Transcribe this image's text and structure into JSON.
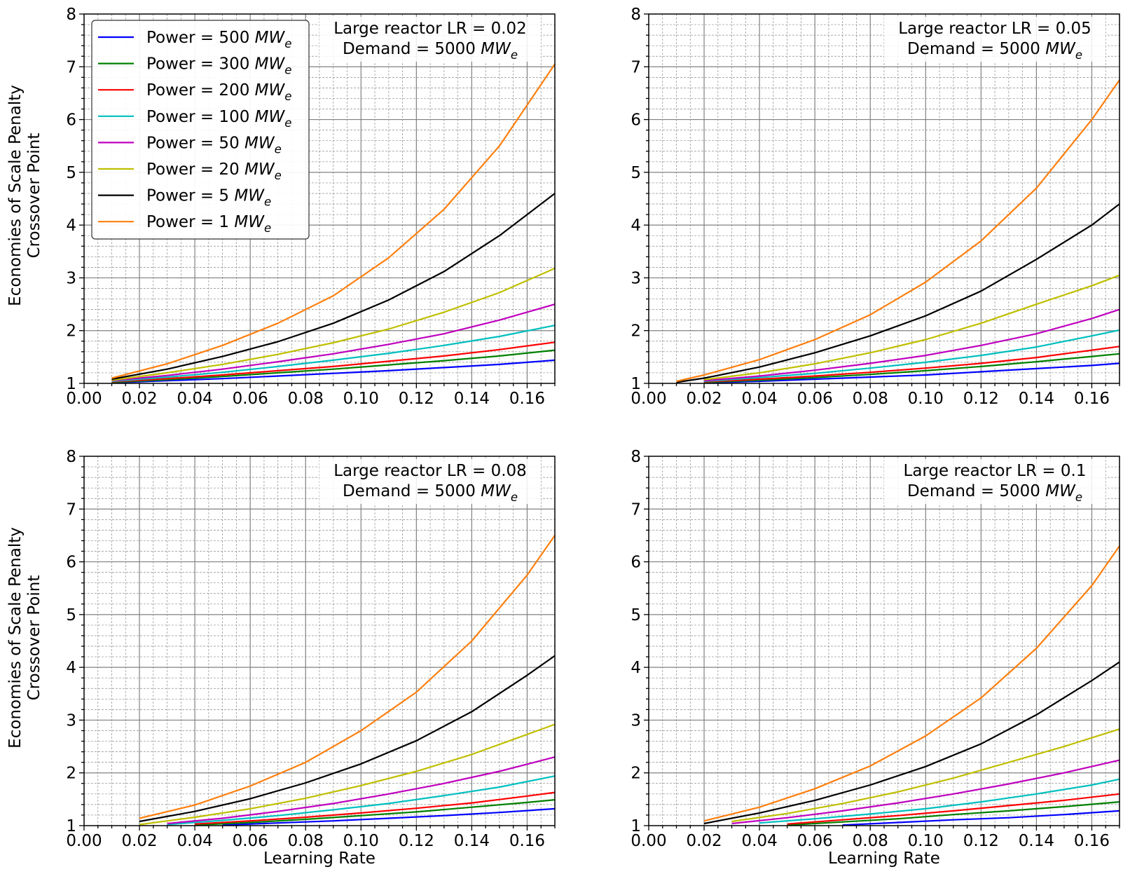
{
  "figure": {
    "ylabel_lines": [
      "Economies of Scale Penalty",
      "Crossover Point"
    ],
    "xlabel": "Learning Rate",
    "legend_prefix": "Power = ",
    "unit_main": "MW",
    "unit_sub": "e"
  },
  "chart_data": [
    {
      "type": "line",
      "panel": "top-left",
      "annotation_line1": "Large reactor LR = 0.02",
      "annotation_line2_prefix": "Demand = 5000 ",
      "xlim": [
        0,
        0.17
      ],
      "ylim": [
        1,
        8
      ],
      "xticks": [
        "0.00",
        "0.02",
        "0.04",
        "0.06",
        "0.08",
        "0.10",
        "0.12",
        "0.14",
        "0.16"
      ],
      "yticks": [
        "1",
        "2",
        "3",
        "4",
        "5",
        "6",
        "7",
        "8"
      ],
      "xlabel": "",
      "ylabel": "Economies of Scale Penalty Crossover Point",
      "grid": true,
      "legend": true,
      "legend_position": "upper-left",
      "series": [
        {
          "name": "500",
          "color": "#0000ff",
          "x": [
            0.01,
            0.03,
            0.05,
            0.07,
            0.09,
            0.11,
            0.13,
            0.15,
            0.17
          ],
          "y": [
            1.01,
            1.05,
            1.09,
            1.14,
            1.19,
            1.24,
            1.3,
            1.36,
            1.44
          ]
        },
        {
          "name": "300",
          "color": "#008000",
          "x": [
            0.01,
            0.03,
            0.05,
            0.07,
            0.09,
            0.11,
            0.13,
            0.15,
            0.17
          ],
          "y": [
            1.02,
            1.07,
            1.13,
            1.2,
            1.27,
            1.35,
            1.43,
            1.52,
            1.63
          ]
        },
        {
          "name": "200",
          "color": "#ff0000",
          "x": [
            0.01,
            0.03,
            0.05,
            0.07,
            0.09,
            0.11,
            0.13,
            0.15,
            0.17
          ],
          "y": [
            1.03,
            1.09,
            1.16,
            1.24,
            1.32,
            1.42,
            1.52,
            1.64,
            1.78
          ]
        },
        {
          "name": "100",
          "color": "#00bfbf",
          "x": [
            0.01,
            0.03,
            0.05,
            0.07,
            0.09,
            0.11,
            0.13,
            0.15,
            0.17
          ],
          "y": [
            1.04,
            1.12,
            1.21,
            1.32,
            1.44,
            1.57,
            1.72,
            1.89,
            2.1
          ]
        },
        {
          "name": "50",
          "color": "#bf00bf",
          "x": [
            0.01,
            0.03,
            0.05,
            0.07,
            0.09,
            0.11,
            0.13,
            0.15,
            0.17
          ],
          "y": [
            1.05,
            1.15,
            1.27,
            1.41,
            1.56,
            1.74,
            1.94,
            2.2,
            2.5
          ]
        },
        {
          "name": "20",
          "color": "#bfbf00",
          "x": [
            0.01,
            0.03,
            0.05,
            0.07,
            0.09,
            0.11,
            0.13,
            0.15,
            0.17
          ],
          "y": [
            1.06,
            1.2,
            1.36,
            1.55,
            1.77,
            2.03,
            2.35,
            2.72,
            3.18
          ]
        },
        {
          "name": "5",
          "color": "#000000",
          "x": [
            0.01,
            0.03,
            0.05,
            0.07,
            0.09,
            0.11,
            0.13,
            0.15,
            0.17
          ],
          "y": [
            1.08,
            1.27,
            1.51,
            1.79,
            2.14,
            2.58,
            3.12,
            3.8,
            4.6
          ]
        },
        {
          "name": "1",
          "color": "#ff7f0e",
          "x": [
            0.01,
            0.03,
            0.05,
            0.07,
            0.09,
            0.11,
            0.13,
            0.15,
            0.17
          ],
          "y": [
            1.1,
            1.37,
            1.72,
            2.14,
            2.66,
            3.38,
            4.3,
            5.5,
            7.05
          ]
        }
      ]
    },
    {
      "type": "line",
      "panel": "top-right",
      "annotation_line1": "Large reactor LR = 0.05",
      "annotation_line2_prefix": "Demand = 5000 ",
      "xlim": [
        0,
        0.17
      ],
      "ylim": [
        1,
        8
      ],
      "xticks": [
        "0.00",
        "0.02",
        "0.04",
        "0.06",
        "0.08",
        "0.10",
        "0.12",
        "0.14",
        "0.16"
      ],
      "yticks": [
        "1",
        "2",
        "3",
        "4",
        "5",
        "6",
        "7",
        "8"
      ],
      "xlabel": "",
      "ylabel": "",
      "grid": true,
      "legend": false,
      "series": [
        {
          "name": "500",
          "color": "#0000ff",
          "x": [
            0.02,
            0.04,
            0.06,
            0.08,
            0.1,
            0.12,
            0.14,
            0.16,
            0.17
          ],
          "y": [
            1.01,
            1.04,
            1.08,
            1.12,
            1.16,
            1.22,
            1.28,
            1.34,
            1.38
          ]
        },
        {
          "name": "300",
          "color": "#008000",
          "x": [
            0.02,
            0.04,
            0.06,
            0.08,
            0.1,
            0.12,
            0.14,
            0.16,
            0.17
          ],
          "y": [
            1.02,
            1.06,
            1.11,
            1.17,
            1.24,
            1.32,
            1.41,
            1.51,
            1.56
          ]
        },
        {
          "name": "200",
          "color": "#ff0000",
          "x": [
            0.02,
            0.04,
            0.06,
            0.08,
            0.1,
            0.12,
            0.14,
            0.16,
            0.17
          ],
          "y": [
            1.03,
            1.08,
            1.14,
            1.21,
            1.29,
            1.38,
            1.49,
            1.63,
            1.7
          ]
        },
        {
          "name": "100",
          "color": "#00bfbf",
          "x": [
            0.02,
            0.04,
            0.06,
            0.08,
            0.1,
            0.12,
            0.14,
            0.16,
            0.17
          ],
          "y": [
            1.04,
            1.11,
            1.19,
            1.29,
            1.4,
            1.53,
            1.69,
            1.9,
            2.01
          ]
        },
        {
          "name": "50",
          "color": "#bf00bf",
          "x": [
            0.02,
            0.04,
            0.06,
            0.08,
            0.1,
            0.12,
            0.14,
            0.16,
            0.17
          ],
          "y": [
            1.05,
            1.14,
            1.25,
            1.38,
            1.53,
            1.72,
            1.94,
            2.23,
            2.4
          ]
        },
        {
          "name": "20",
          "color": "#bfbf00",
          "x": [
            0.02,
            0.04,
            0.06,
            0.08,
            0.1,
            0.12,
            0.14,
            0.16,
            0.17
          ],
          "y": [
            1.07,
            1.2,
            1.37,
            1.58,
            1.83,
            2.14,
            2.5,
            2.85,
            3.05
          ]
        },
        {
          "name": "5",
          "color": "#000000",
          "x": [
            0.01,
            0.02,
            0.04,
            0.06,
            0.08,
            0.1,
            0.12,
            0.14,
            0.16,
            0.17
          ],
          "y": [
            1.02,
            1.1,
            1.31,
            1.58,
            1.9,
            2.28,
            2.75,
            3.35,
            4.0,
            4.4
          ]
        },
        {
          "name": "1",
          "color": "#ff7f0e",
          "x": [
            0.01,
            0.02,
            0.04,
            0.06,
            0.08,
            0.1,
            0.12,
            0.14,
            0.16,
            0.17
          ],
          "y": [
            1.04,
            1.16,
            1.45,
            1.83,
            2.3,
            2.92,
            3.7,
            4.7,
            6.0,
            6.75
          ]
        }
      ]
    },
    {
      "type": "line",
      "panel": "bottom-left",
      "annotation_line1": "Large reactor LR = 0.08",
      "annotation_line2_prefix": "Demand = 5000 ",
      "xlim": [
        0,
        0.17
      ],
      "ylim": [
        1,
        8
      ],
      "xticks": [
        "0.00",
        "0.02",
        "0.04",
        "0.06",
        "0.08",
        "0.10",
        "0.12",
        "0.14",
        "0.16"
      ],
      "yticks": [
        "1",
        "2",
        "3",
        "4",
        "5",
        "6",
        "7",
        "8"
      ],
      "xlabel": "Learning Rate",
      "ylabel": "Economies of Scale Penalty Crossover Point",
      "grid": true,
      "legend": false,
      "series": [
        {
          "name": "500",
          "color": "#0000ff",
          "x": [
            0.05,
            0.07,
            0.09,
            0.11,
            0.13,
            0.15,
            0.17
          ],
          "y": [
            1.01,
            1.05,
            1.09,
            1.14,
            1.19,
            1.25,
            1.32
          ]
        },
        {
          "name": "300",
          "color": "#008000",
          "x": [
            0.04,
            0.06,
            0.08,
            0.1,
            0.12,
            0.14,
            0.16,
            0.17
          ],
          "y": [
            1.01,
            1.06,
            1.12,
            1.19,
            1.26,
            1.35,
            1.44,
            1.49
          ]
        },
        {
          "name": "200",
          "color": "#ff0000",
          "x": [
            0.04,
            0.06,
            0.08,
            0.1,
            0.12,
            0.14,
            0.16,
            0.17
          ],
          "y": [
            1.03,
            1.09,
            1.16,
            1.24,
            1.33,
            1.43,
            1.56,
            1.63
          ]
        },
        {
          "name": "100",
          "color": "#00bfbf",
          "x": [
            0.03,
            0.05,
            0.07,
            0.09,
            0.11,
            0.13,
            0.15,
            0.17
          ],
          "y": [
            1.02,
            1.1,
            1.19,
            1.3,
            1.42,
            1.57,
            1.73,
            1.94
          ]
        },
        {
          "name": "50",
          "color": "#bf00bf",
          "x": [
            0.03,
            0.05,
            0.07,
            0.09,
            0.11,
            0.13,
            0.15,
            0.17
          ],
          "y": [
            1.04,
            1.14,
            1.27,
            1.42,
            1.6,
            1.8,
            2.03,
            2.3
          ]
        },
        {
          "name": "20",
          "color": "#bfbf00",
          "x": [
            0.02,
            0.04,
            0.06,
            0.08,
            0.1,
            0.12,
            0.14,
            0.16,
            0.17
          ],
          "y": [
            1.02,
            1.16,
            1.32,
            1.52,
            1.76,
            2.03,
            2.35,
            2.73,
            2.92
          ]
        },
        {
          "name": "5",
          "color": "#000000",
          "x": [
            0.02,
            0.04,
            0.06,
            0.08,
            0.1,
            0.12,
            0.14,
            0.16,
            0.17
          ],
          "y": [
            1.08,
            1.27,
            1.51,
            1.81,
            2.17,
            2.61,
            3.16,
            3.85,
            4.22
          ]
        },
        {
          "name": "1",
          "color": "#ff7f0e",
          "x": [
            0.02,
            0.04,
            0.06,
            0.08,
            0.1,
            0.12,
            0.14,
            0.16,
            0.17
          ],
          "y": [
            1.14,
            1.39,
            1.75,
            2.2,
            2.8,
            3.53,
            4.5,
            5.75,
            6.5
          ]
        }
      ]
    },
    {
      "type": "line",
      "panel": "bottom-right",
      "annotation_line1": "Large reactor LR = 0.1",
      "annotation_line2_prefix": "Demand = 5000 ",
      "xlim": [
        0,
        0.17
      ],
      "ylim": [
        1,
        8
      ],
      "xticks": [
        "0.00",
        "0.02",
        "0.04",
        "0.06",
        "0.08",
        "0.10",
        "0.12",
        "0.14",
        "0.16"
      ],
      "yticks": [
        "1",
        "2",
        "3",
        "4",
        "5",
        "6",
        "7",
        "8"
      ],
      "xlabel": "Learning Rate",
      "ylabel": "",
      "grid": true,
      "legend": false,
      "series": [
        {
          "name": "500",
          "color": "#0000ff",
          "x": [
            0.07,
            0.09,
            0.11,
            0.13,
            0.15,
            0.17
          ],
          "y": [
            1.01,
            1.06,
            1.11,
            1.15,
            1.21,
            1.28
          ]
        },
        {
          "name": "300",
          "color": "#008000",
          "x": [
            0.05,
            0.07,
            0.09,
            0.11,
            0.13,
            0.15,
            0.17
          ],
          "y": [
            1.01,
            1.07,
            1.13,
            1.21,
            1.28,
            1.36,
            1.45
          ]
        },
        {
          "name": "200",
          "color": "#ff0000",
          "x": [
            0.05,
            0.07,
            0.09,
            0.11,
            0.13,
            0.15,
            0.17
          ],
          "y": [
            1.03,
            1.11,
            1.19,
            1.28,
            1.38,
            1.48,
            1.6
          ]
        },
        {
          "name": "100",
          "color": "#00bfbf",
          "x": [
            0.04,
            0.06,
            0.08,
            0.1,
            0.12,
            0.14,
            0.16,
            0.17
          ],
          "y": [
            1.05,
            1.13,
            1.22,
            1.32,
            1.45,
            1.6,
            1.77,
            1.88
          ]
        },
        {
          "name": "50",
          "color": "#bf00bf",
          "x": [
            0.03,
            0.05,
            0.07,
            0.09,
            0.11,
            0.13,
            0.15,
            0.17
          ],
          "y": [
            1.04,
            1.15,
            1.28,
            1.43,
            1.6,
            1.79,
            2.0,
            2.24
          ]
        },
        {
          "name": "20",
          "color": "#bfbf00",
          "x": [
            0.03,
            0.05,
            0.07,
            0.09,
            0.11,
            0.13,
            0.15,
            0.17
          ],
          "y": [
            1.08,
            1.23,
            1.42,
            1.64,
            1.9,
            2.2,
            2.5,
            2.83
          ]
        },
        {
          "name": "5",
          "color": "#000000",
          "x": [
            0.02,
            0.04,
            0.06,
            0.08,
            0.1,
            0.12,
            0.14,
            0.16,
            0.17
          ],
          "y": [
            1.04,
            1.24,
            1.48,
            1.77,
            2.12,
            2.55,
            3.1,
            3.75,
            4.1
          ]
        },
        {
          "name": "1",
          "color": "#ff7f0e",
          "x": [
            0.02,
            0.04,
            0.06,
            0.08,
            0.1,
            0.12,
            0.14,
            0.16,
            0.17
          ],
          "y": [
            1.09,
            1.35,
            1.7,
            2.13,
            2.7,
            3.42,
            4.36,
            5.55,
            6.3
          ]
        }
      ]
    }
  ]
}
